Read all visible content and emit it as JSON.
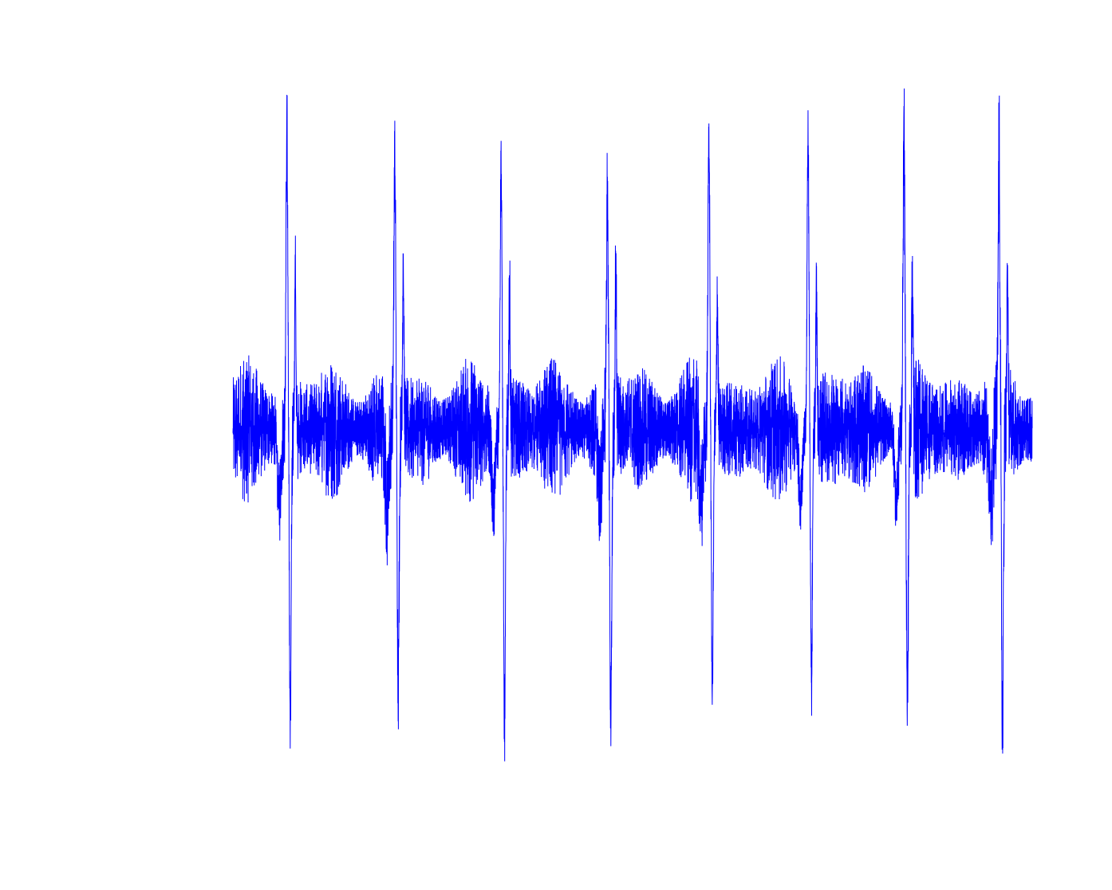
{
  "chart_data": {
    "type": "line",
    "title": "",
    "xlabel": "",
    "ylabel": "",
    "axes_visible": false,
    "grid": false,
    "legend": "none",
    "color": "#0000ff",
    "xlim": [
      0,
      1
    ],
    "ylim": [
      -1.0,
      1.0
    ],
    "baseline": {
      "center": 0.0,
      "amplitude": 0.2
    },
    "beats": [
      {
        "x": 0.07,
        "peak": 1.0,
        "trough": -1.0,
        "secondary": 0.5
      },
      {
        "x": 0.205,
        "peak": 0.91,
        "trough": -0.85,
        "secondary": 0.55
      },
      {
        "x": 0.338,
        "peak": 0.91,
        "trough": -0.99,
        "secondary": 0.47
      },
      {
        "x": 0.471,
        "peak": 0.78,
        "trough": -0.96,
        "secondary": 0.55
      },
      {
        "x": 0.598,
        "peak": 0.96,
        "trough": -0.88,
        "secondary": 0.44
      },
      {
        "x": 0.722,
        "peak": 0.99,
        "trough": -0.85,
        "secondary": 0.49
      },
      {
        "x": 0.842,
        "peak": 1.0,
        "trough": -0.93,
        "secondary": 0.53
      },
      {
        "x": 0.961,
        "peak": 0.91,
        "trough": -1.01,
        "secondary": 0.49
      }
    ]
  }
}
